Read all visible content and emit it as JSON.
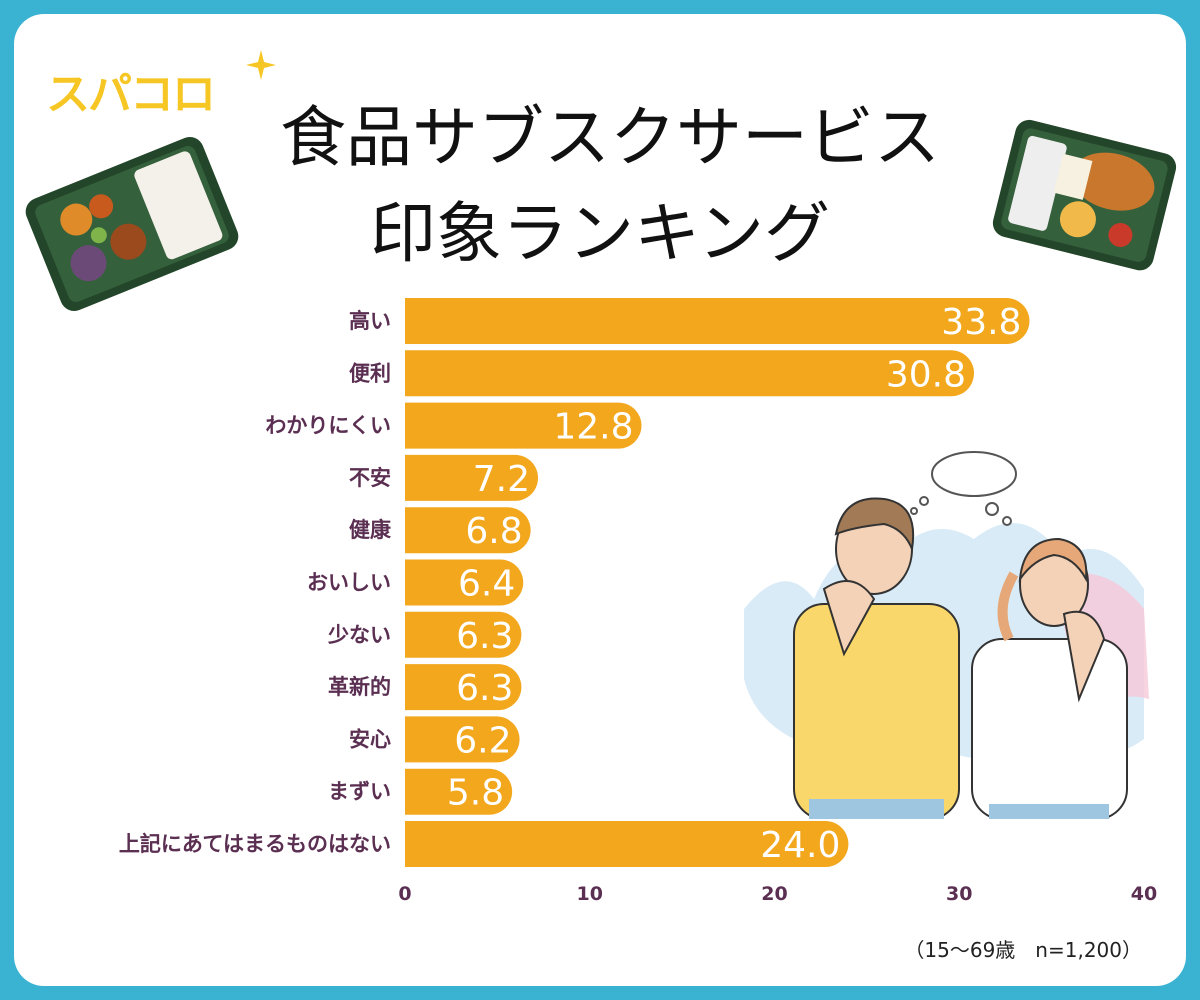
{
  "logo": "スパコロ",
  "title_line1": "食品サブスクサービス",
  "title_line2": "印象ランキング",
  "sample_note": "（15〜69歳　n=1,200）",
  "colors": {
    "background_frame": "#3ab3d2",
    "bar": "#f2a71d",
    "category_text": "#5b2f52",
    "logo": "#f6c624"
  },
  "chart_data": {
    "type": "bar",
    "orientation": "horizontal",
    "categories": [
      "高い",
      "便利",
      "わかりにくい",
      "不安",
      "健康",
      "おいしい",
      "少ない",
      "革新的",
      "安心",
      "まずい",
      "上記にあてはまるものはない"
    ],
    "values": [
      33.8,
      30.8,
      12.8,
      7.2,
      6.8,
      6.4,
      6.3,
      6.3,
      6.2,
      5.8,
      24.0
    ],
    "value_labels": [
      "33.8",
      "30.8",
      "12.8",
      "7.2",
      "6.8",
      "6.4",
      "6.3",
      "6.3",
      "6.2",
      "5.8",
      "24.0"
    ],
    "xlim": [
      0,
      40
    ],
    "xticks": [
      "0",
      "10",
      "20",
      "30",
      "40"
    ],
    "grid": false,
    "legend": "none"
  }
}
